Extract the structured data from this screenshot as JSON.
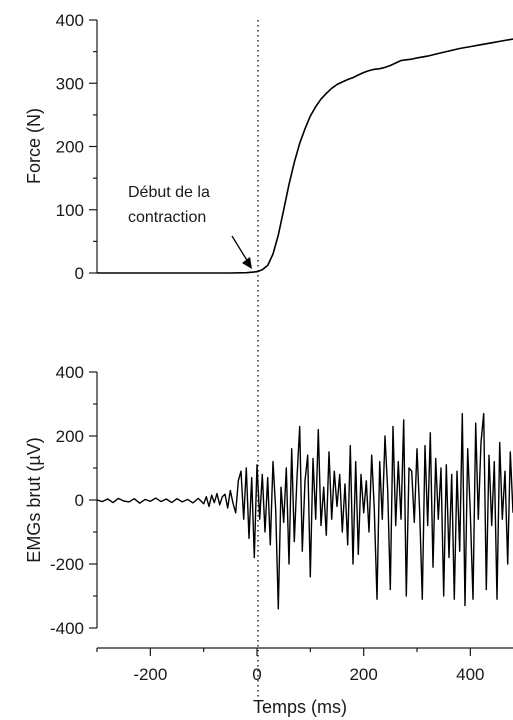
{
  "chart_data": [
    {
      "id": "force",
      "type": "line",
      "ylabel": "Force (N)",
      "xlabel": "",
      "xlim": [
        -300,
        480
      ],
      "ylim": [
        0,
        400
      ],
      "yticks": [
        0,
        100,
        200,
        300,
        400
      ],
      "annotation": {
        "lines": [
          "Début de la",
          "contraction"
        ],
        "arrow_tip": [
          -5,
          2
        ]
      },
      "series": [
        {
          "color": "#000000",
          "x": [
            -300,
            -250,
            -200,
            -150,
            -100,
            -50,
            -20,
            0,
            10,
            20,
            30,
            40,
            50,
            60,
            70,
            80,
            90,
            100,
            110,
            120,
            130,
            140,
            150,
            160,
            170,
            180,
            190,
            200,
            210,
            220,
            230,
            240,
            250,
            260,
            270,
            280,
            290,
            300,
            320,
            340,
            360,
            380,
            400,
            420,
            440,
            460,
            480
          ],
          "y": [
            0,
            0,
            0,
            0,
            0,
            0,
            0.5,
            2,
            5,
            12,
            30,
            60,
            100,
            140,
            175,
            205,
            228,
            248,
            263,
            275,
            284,
            292,
            298,
            302,
            306,
            309,
            313,
            317,
            320,
            322,
            323,
            325,
            328,
            332,
            336,
            337,
            338,
            340,
            343,
            347,
            351,
            355,
            358,
            361,
            364,
            367,
            370
          ]
        }
      ]
    },
    {
      "id": "emg",
      "type": "line",
      "ylabel": "EMGs brut (µV)",
      "xlabel": "Temps (ms)",
      "xlim": [
        -300,
        480
      ],
      "ylim": [
        -400,
        400
      ],
      "yticks": [
        -400,
        -200,
        0,
        200,
        400
      ],
      "xticks": [
        -200,
        0,
        200,
        400
      ],
      "series": [
        {
          "color": "#000000",
          "x": [
            -300,
            -290,
            -280,
            -270,
            -260,
            -250,
            -240,
            -230,
            -220,
            -210,
            -200,
            -190,
            -180,
            -170,
            -160,
            -150,
            -140,
            -130,
            -120,
            -110,
            -100,
            -95,
            -90,
            -85,
            -80,
            -75,
            -70,
            -65,
            -60,
            -55,
            -50,
            -45,
            -40,
            -35,
            -30,
            -25,
            -20,
            -15,
            -10,
            -5,
            0,
            5,
            10,
            15,
            20,
            25,
            30,
            35,
            40,
            45,
            50,
            55,
            60,
            65,
            70,
            75,
            80,
            85,
            90,
            95,
            100,
            105,
            110,
            115,
            120,
            125,
            130,
            135,
            140,
            145,
            150,
            155,
            160,
            165,
            170,
            175,
            180,
            185,
            190,
            195,
            200,
            205,
            210,
            215,
            220,
            225,
            230,
            235,
            240,
            245,
            250,
            255,
            260,
            265,
            270,
            275,
            280,
            285,
            290,
            295,
            300,
            305,
            310,
            315,
            320,
            325,
            330,
            335,
            340,
            345,
            350,
            355,
            360,
            365,
            370,
            375,
            380,
            385,
            390,
            395,
            400,
            405,
            410,
            415,
            420,
            425,
            430,
            435,
            440,
            445,
            450,
            455,
            460,
            465,
            470,
            475,
            480
          ],
          "y": [
            0,
            -5,
            3,
            -8,
            5,
            -3,
            -6,
            4,
            -10,
            2,
            -4,
            6,
            -5,
            3,
            -8,
            4,
            -6,
            2,
            -9,
            5,
            -12,
            10,
            -20,
            15,
            -8,
            20,
            -15,
            10,
            18,
            -25,
            30,
            -10,
            -40,
            60,
            90,
            -60,
            100,
            -120,
            70,
            -180,
            110,
            -60,
            80,
            -100,
            70,
            -140,
            120,
            -30,
            -340,
            40,
            -70,
            100,
            -200,
            160,
            -130,
            70,
            230,
            -160,
            60,
            140,
            -240,
            130,
            -60,
            220,
            -80,
            40,
            -110,
            150,
            -60,
            90,
            -20,
            80,
            -100,
            50,
            -140,
            170,
            -200,
            120,
            -170,
            80,
            -40,
            60,
            -100,
            140,
            -30,
            -310,
            120,
            -60,
            200,
            30,
            -280,
            230,
            -80,
            120,
            -60,
            250,
            -300,
            100,
            90,
            -70,
            160,
            -40,
            -310,
            170,
            -80,
            210,
            -210,
            130,
            -60,
            100,
            -300,
            110,
            -180,
            80,
            -310,
            90,
            -160,
            270,
            -330,
            160,
            -40,
            -310,
            240,
            -60,
            180,
            270,
            -280,
            140,
            -80,
            120,
            -310,
            180,
            -60,
            90,
            -200,
            150,
            -40
          ]
        }
      ]
    }
  ]
}
